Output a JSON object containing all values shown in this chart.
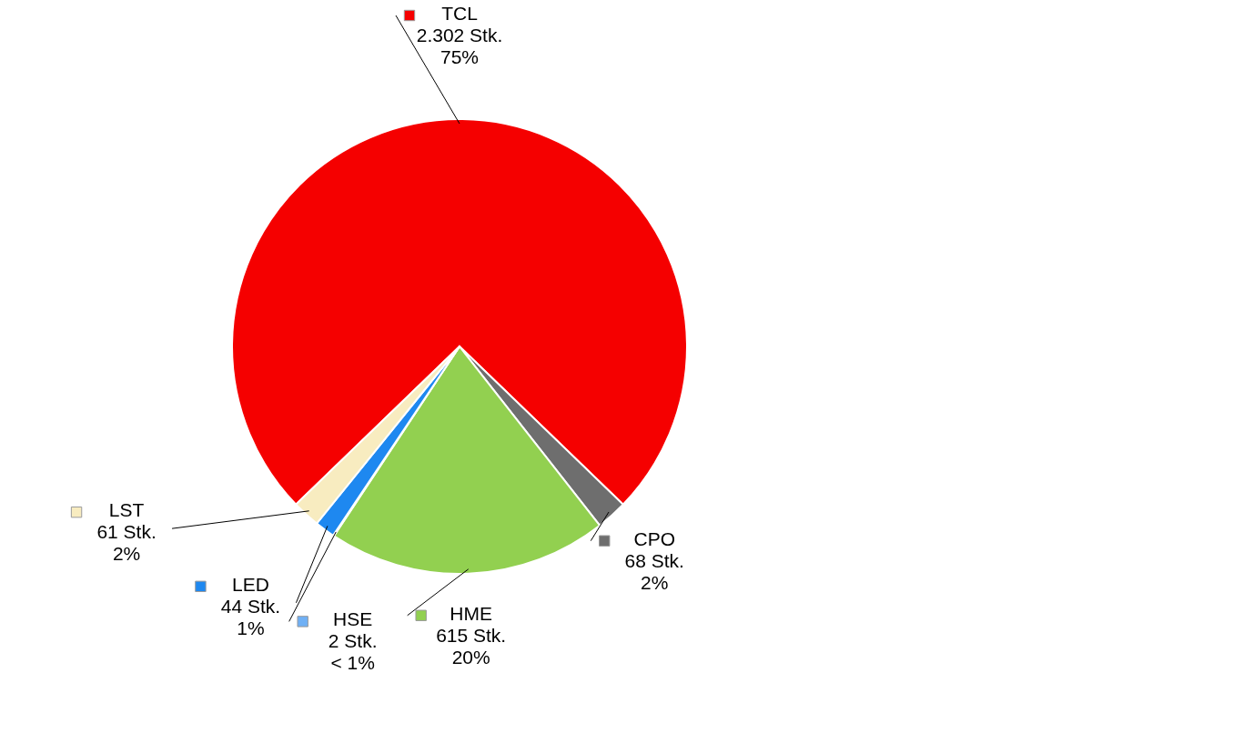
{
  "chart_data": {
    "type": "pie",
    "categories": [
      "TCL",
      "CPO",
      "HME",
      "HSE",
      "LED",
      "LST"
    ],
    "values": [
      2302,
      68,
      615,
      2,
      44,
      61
    ],
    "colors": [
      "#f50000",
      "#6e6e6e",
      "#92d050",
      "#6fb0f5",
      "#1e88f0",
      "#f8ecc0"
    ],
    "value_labels": [
      "2.302 Stk.\n75%",
      "68 Stk.\n2%",
      "615 Stk.\n20%",
      "2 Stk.\n< 1%",
      "44 Stk.\n1%",
      "61 Stk.\n2%"
    ],
    "legend": true
  }
}
